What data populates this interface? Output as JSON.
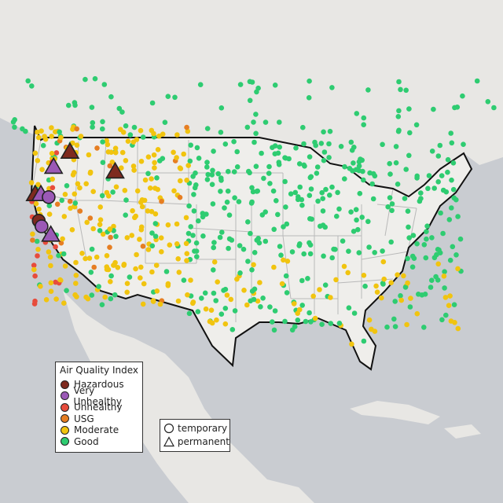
{
  "legend": {
    "title": "Air Quality Index",
    "categories": [
      {
        "label": "Hazardous",
        "color": "#7e2a1f"
      },
      {
        "label": "Very Unhealthy",
        "color": "#9b59b6"
      },
      {
        "label": "Unhealthy",
        "color": "#e74c3c"
      },
      {
        "label": "USG",
        "color": "#e67e22"
      },
      {
        "label": "Moderate",
        "color": "#f1c40f"
      },
      {
        "label": "Good",
        "color": "#2ecc71"
      }
    ]
  },
  "shape_legend": {
    "temporary_label": "temporary",
    "permanent_label": "permanent"
  },
  "colors": {
    "water": "#c9ccd1",
    "land": "#e8e7e4",
    "us_land": "#efeeeb",
    "border": "#111111",
    "state_lines": "#b9b9b9"
  },
  "markers": [
    {
      "aqi": "Hazardous",
      "type": "permanent",
      "lon": -118.9,
      "lat": 46.4
    },
    {
      "aqi": "Hazardous",
      "type": "permanent",
      "lon": -112.5,
      "lat": 44.3
    },
    {
      "aqi": "Hazardous",
      "type": "permanent",
      "lon": -123.8,
      "lat": 41.9
    },
    {
      "aqi": "Hazardous",
      "type": "temporary",
      "lon": -123.3,
      "lat": 39.1
    },
    {
      "aqi": "Very Unhealthy",
      "type": "permanent",
      "lon": -121.2,
      "lat": 44.8
    },
    {
      "aqi": "Very Unhealthy",
      "type": "permanent",
      "lon": -123.0,
      "lat": 41.9
    },
    {
      "aqi": "Very Unhealthy",
      "type": "temporary",
      "lon": -121.9,
      "lat": 41.6
    },
    {
      "aqi": "Very Unhealthy",
      "type": "temporary",
      "lon": -122.9,
      "lat": 38.5
    },
    {
      "aqi": "Very Unhealthy",
      "type": "permanent",
      "lon": -121.6,
      "lat": 37.6
    }
  ]
}
